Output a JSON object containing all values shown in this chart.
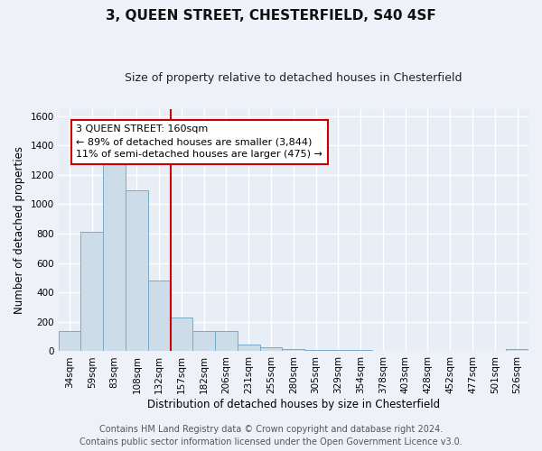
{
  "title": "3, QUEEN STREET, CHESTERFIELD, S40 4SF",
  "subtitle": "Size of property relative to detached houses in Chesterfield",
  "xlabel": "Distribution of detached houses by size in Chesterfield",
  "ylabel": "Number of detached properties",
  "categories": [
    "34sqm",
    "59sqm",
    "83sqm",
    "108sqm",
    "132sqm",
    "157sqm",
    "182sqm",
    "206sqm",
    "231sqm",
    "255sqm",
    "280sqm",
    "305sqm",
    "329sqm",
    "354sqm",
    "378sqm",
    "403sqm",
    "428sqm",
    "452sqm",
    "477sqm",
    "501sqm",
    "526sqm"
  ],
  "values": [
    140,
    815,
    1300,
    1095,
    480,
    230,
    135,
    135,
    43,
    30,
    14,
    10,
    10,
    10,
    5,
    5,
    5,
    5,
    5,
    5,
    14
  ],
  "bar_color": "#ccdce8",
  "bar_edge_color": "#7aaac8",
  "ylim": [
    0,
    1650
  ],
  "yticks": [
    0,
    200,
    400,
    600,
    800,
    1000,
    1200,
    1400,
    1600
  ],
  "vline_x_index": 4.5,
  "vline_color": "#cc0000",
  "annotation_text": "3 QUEEN STREET: 160sqm\n← 89% of detached houses are smaller (3,844)\n11% of semi-detached houses are larger (475) →",
  "footer1": "Contains HM Land Registry data © Crown copyright and database right 2024.",
  "footer2": "Contains public sector information licensed under the Open Government Licence v3.0.",
  "bg_color": "#eef2f8",
  "plot_bg_color": "#e8eef5",
  "grid_color": "#ffffff",
  "title_fontsize": 11,
  "subtitle_fontsize": 9,
  "axis_label_fontsize": 8.5,
  "tick_fontsize": 7.5,
  "annotation_fontsize": 8,
  "footer_fontsize": 7
}
